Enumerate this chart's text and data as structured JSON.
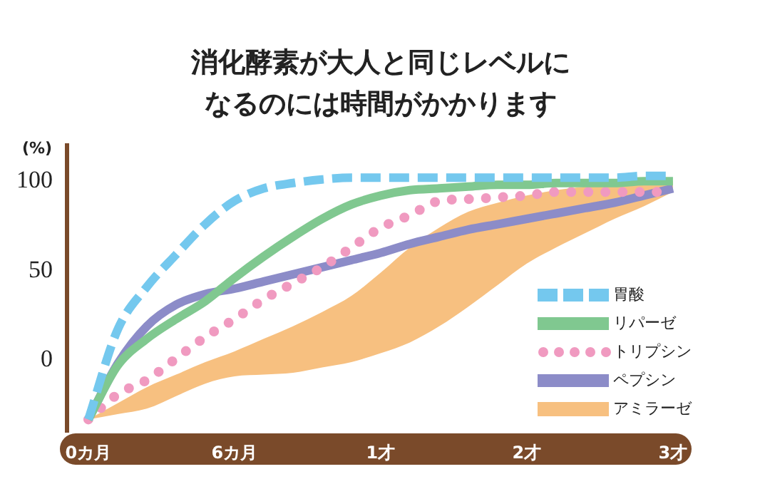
{
  "chart_data": {
    "type": "line",
    "title": "消化酵素が大人と同じレベルになるのには時間がかかります",
    "ylabel": "(%)",
    "categories": [
      "0カ月",
      null,
      null,
      null,
      null,
      "6カ月",
      null,
      null,
      null,
      null,
      "1才",
      null,
      null,
      null,
      null,
      "2才",
      null,
      null,
      null,
      null,
      "3才"
    ],
    "ylim": [
      -40,
      120
    ],
    "yticks": [
      0,
      50,
      100
    ],
    "grid": false,
    "legend": "bottom right",
    "marker": "none",
    "series": [
      {
        "name": "胃酸",
        "color": "#74c8ee",
        "line_style": "dashed",
        "values": [
          -33,
          17,
          41,
          59,
          76,
          89,
          96,
          99,
          101,
          102,
          102,
          102,
          102,
          102,
          102,
          102,
          102,
          102,
          102,
          103,
          103
        ]
      },
      {
        "name": "リパーゼ",
        "color": "#80c890",
        "line_style": "solid",
        "values": [
          -33,
          -3,
          12,
          23,
          33,
          46,
          58,
          69,
          79,
          87,
          92,
          95,
          96,
          97,
          98,
          98,
          99,
          99,
          99,
          100,
          100
        ]
      },
      {
        "name": "トリプシン",
        "color": "#f09ac0",
        "line_style": "dotted",
        "values": [
          -33,
          -19,
          -11,
          1,
          13,
          23,
          34,
          43,
          52,
          63,
          74,
          81,
          89,
          90,
          91,
          92,
          94,
          94,
          94,
          94,
          94
        ]
      },
      {
        "name": "ペプシン",
        "color": "#8c8cc8",
        "line_style": "solid",
        "values": [
          -33,
          -2,
          19,
          31,
          37,
          40,
          44,
          48,
          52,
          56,
          60,
          65,
          69,
          73,
          76,
          79,
          82,
          85,
          88,
          92,
          96
        ]
      },
      {
        "name": "アミラーゼ",
        "type": "area",
        "color": "#f7c080",
        "values": [
          null,
          null,
          null,
          null,
          null,
          null,
          null,
          null,
          null,
          null,
          null,
          null,
          null,
          null,
          null,
          null,
          null,
          null,
          null,
          null,
          null
        ],
        "lower": [
          -33,
          -30,
          -27,
          -20,
          -13,
          -9,
          -8,
          -7,
          -4,
          -1,
          4,
          10,
          19,
          30,
          42,
          54,
          63,
          71,
          79,
          86,
          94
        ],
        "upper": [
          -33,
          -24,
          -15,
          -8,
          -1,
          5,
          12,
          19,
          27,
          36,
          49,
          63,
          74,
          83,
          88,
          92,
          95,
          97,
          98,
          99,
          100
        ]
      }
    ]
  }
}
